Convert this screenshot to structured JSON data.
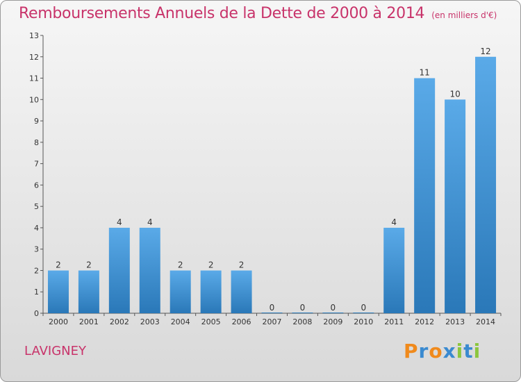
{
  "header": {
    "title": "Remboursements Annuels de la Dette de 2000 à 2014",
    "subtitle": "(en milliers d'€)"
  },
  "footer": {
    "commune": "LAVIGNEY",
    "logo": "Proxiti"
  },
  "colors": {
    "bar_light": "#5aaae8",
    "bar_dark": "#2a78b8",
    "title": "#c8336a",
    "logo_letters": [
      "#f08a1c",
      "#3a8ad0",
      "#f08a1c",
      "#3a8ad0",
      "#8cc63e",
      "#3a8ad0",
      "#8cc63e"
    ]
  },
  "chart_data": {
    "type": "bar",
    "title": "Remboursements Annuels de la Dette de 2000 à 2014",
    "subtitle": "(en milliers d'€)",
    "categories": [
      "2000",
      "2001",
      "2002",
      "2003",
      "2004",
      "2005",
      "2006",
      "2007",
      "2008",
      "2009",
      "2010",
      "2011",
      "2012",
      "2013",
      "2014"
    ],
    "values": [
      2,
      2,
      4,
      4,
      2,
      2,
      2,
      0,
      0,
      0,
      0,
      4,
      11,
      10,
      12
    ],
    "ylim": [
      0,
      13
    ],
    "yticks": [
      0,
      1,
      2,
      3,
      4,
      5,
      6,
      7,
      8,
      9,
      10,
      11,
      12,
      13
    ],
    "grid": false,
    "legend": "none",
    "data_labels": true
  }
}
